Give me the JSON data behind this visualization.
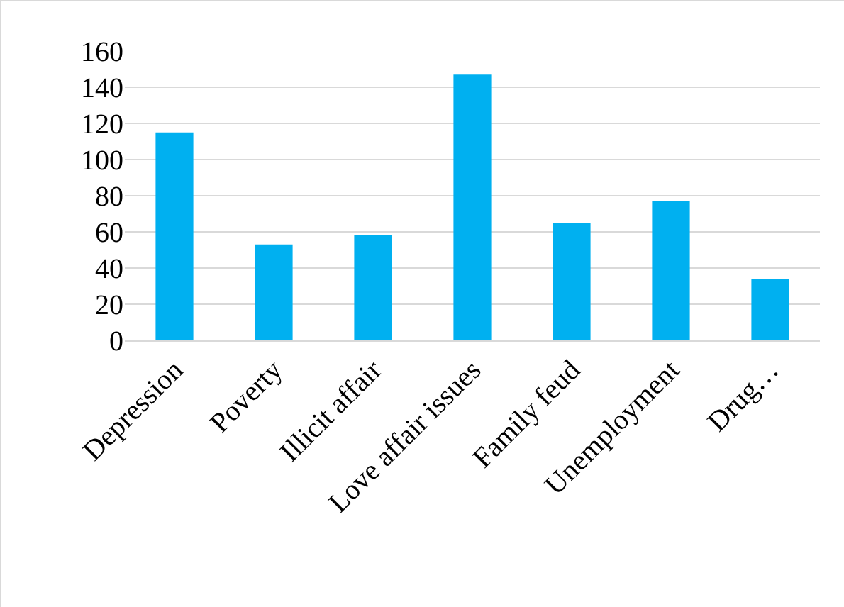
{
  "chart_data": {
    "type": "bar",
    "categories": [
      "Depression",
      "Poverty",
      "Illicit affair",
      "Love affair issues",
      "Family feud",
      "Unemployment",
      "Drug…"
    ],
    "values": [
      115,
      53,
      58,
      147,
      65,
      77,
      34
    ],
    "color": "#00b0f0",
    "ylim": [
      0,
      160
    ],
    "yticks": [
      0,
      20,
      40,
      60,
      80,
      100,
      120,
      140,
      160
    ],
    "grid": "y"
  }
}
